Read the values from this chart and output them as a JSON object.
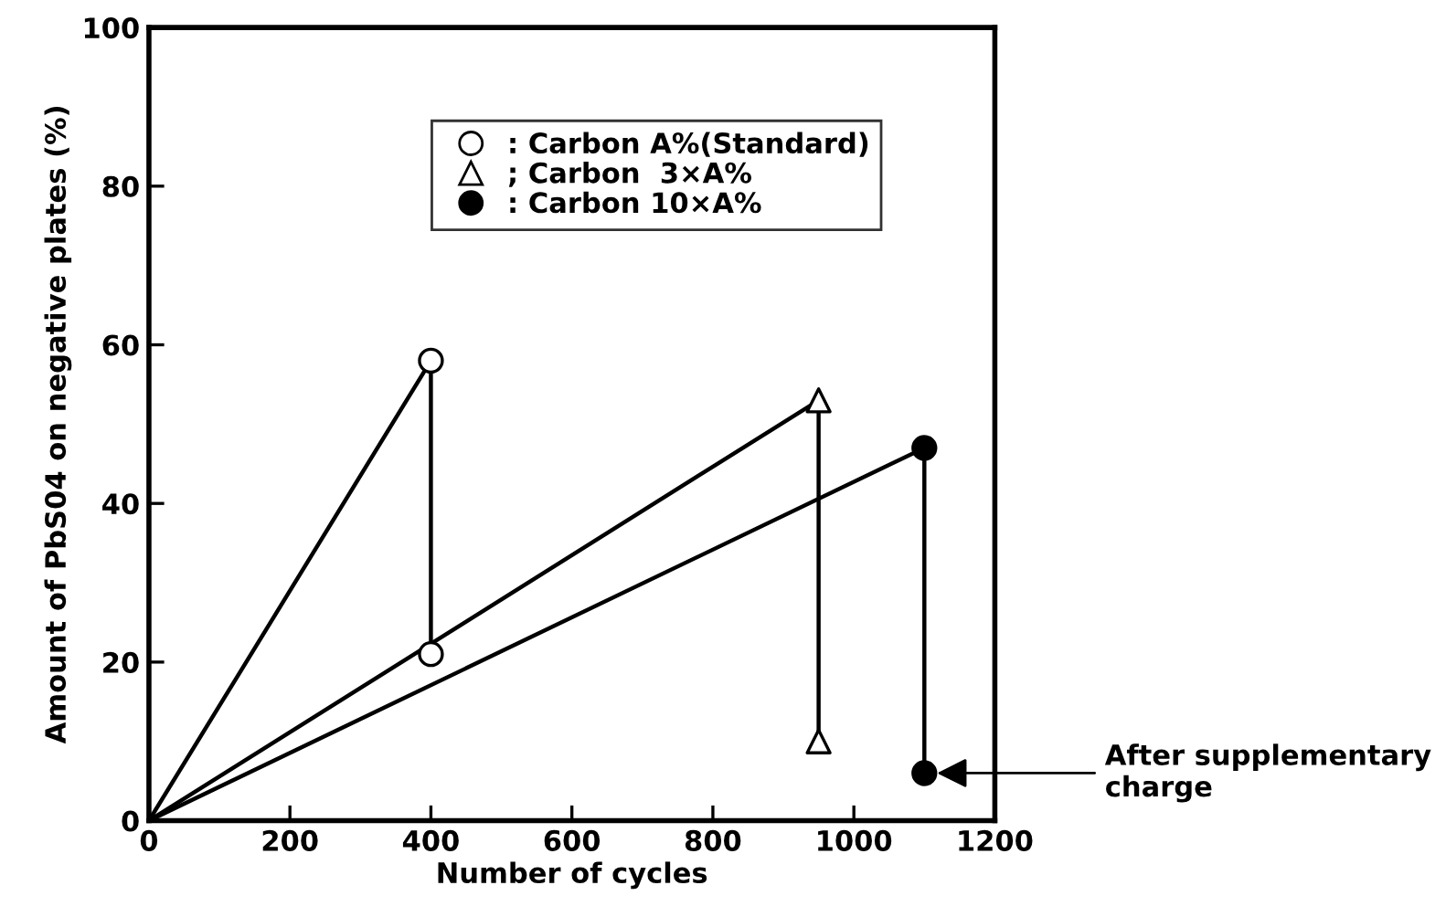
{
  "chart_data": {
    "type": "line",
    "xlabel": "Number of cycles",
    "ylabel": "Amount of PbS04 on negative plates (%)",
    "series": [
      {
        "name": ": Carbon A%(Standard)",
        "x": [
          0,
          400,
          400
        ],
        "values": [
          0,
          58,
          21
        ],
        "color": "#000000",
        "marker": "circle",
        "colors": [
          null,
          "#ffffff",
          "#ffffff"
        ]
      },
      {
        "name": "; Carbon  3×A%",
        "x": [
          0,
          950,
          950
        ],
        "values": [
          0,
          53,
          10
        ],
        "color": "#000000",
        "marker": "triangle",
        "colors": [
          null,
          "#ffffff",
          "#ffffff"
        ]
      },
      {
        "name": ": Carbon 10×A%",
        "x": [
          0,
          1100,
          1100
        ],
        "values": [
          0,
          47,
          6
        ],
        "color": "#000000",
        "marker": "circle",
        "colors": [
          null,
          "#000000",
          "#000000"
        ]
      }
    ],
    "xlim": [
      0,
      1200
    ],
    "xticks": [
      0,
      200,
      400,
      600,
      800,
      1000,
      1200
    ],
    "ylim": [
      0,
      100
    ],
    "yticks": [
      0,
      20,
      40,
      60,
      80,
      100
    ],
    "grid": false,
    "legend": "top",
    "line_style": "solid",
    "annotations": [
      {
        "text": "After supplementary\ncharge",
        "x": 1100,
        "y": 6
      }
    ]
  }
}
